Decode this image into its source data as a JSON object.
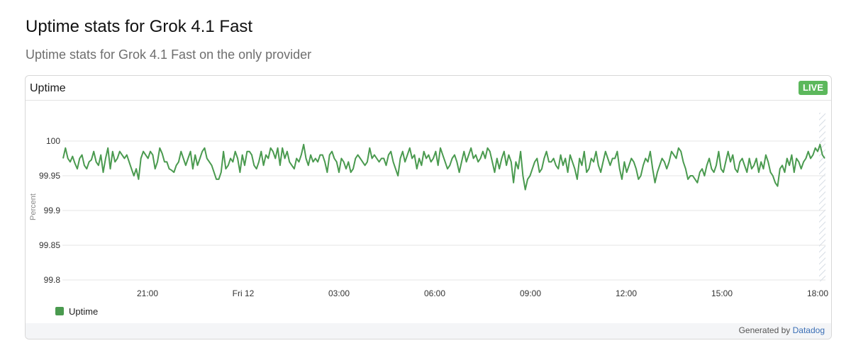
{
  "page": {
    "title": "Uptime stats for Grok 4.1 Fast",
    "subtitle": "Uptime stats for Grok 4.1 Fast on the only provider"
  },
  "widget": {
    "title": "Uptime",
    "badge": "LIVE",
    "badge_color": "#5cb85c",
    "footer_prefix": "Generated by",
    "footer_link": "Datadog"
  },
  "colors": {
    "series": "#4a9a4f",
    "grid": "#e6e6e6"
  },
  "chart_data": {
    "type": "line",
    "ylabel": "Percent",
    "ylim": [
      99.8,
      100.0
    ],
    "yticks": [
      99.8,
      99.85,
      99.9,
      99.95,
      100
    ],
    "ytick_labels": [
      "99.8",
      "99.85",
      "99.9",
      "99.95",
      "100"
    ],
    "xlim": [
      "Thu 18:00",
      "Fri 18:10"
    ],
    "xtick_labels": [
      "21:00",
      "Fri 12",
      "03:00",
      "06:00",
      "09:00",
      "12:00",
      "15:00",
      "18:00"
    ],
    "grid": true,
    "legend_position": "bottom-left",
    "series": [
      {
        "name": "Uptime",
        "values": [
          99.975,
          99.99,
          99.975,
          99.97,
          99.978,
          99.968,
          99.96,
          99.975,
          99.98,
          99.965,
          99.96,
          99.97,
          99.973,
          99.985,
          99.97,
          99.965,
          99.98,
          99.955,
          99.975,
          99.99,
          99.96,
          99.985,
          99.97,
          99.975,
          99.985,
          99.98,
          99.975,
          99.98,
          99.97,
          99.96,
          99.95,
          99.96,
          99.945,
          99.975,
          99.985,
          99.98,
          99.975,
          99.985,
          99.98,
          99.96,
          99.97,
          99.99,
          99.982,
          99.97,
          99.97,
          99.96,
          99.958,
          99.955,
          99.965,
          99.97,
          99.985,
          99.975,
          99.965,
          99.975,
          99.985,
          99.96,
          99.98,
          99.965,
          99.975,
          99.985,
          99.99,
          99.975,
          99.97,
          99.965,
          99.955,
          99.945,
          99.945,
          99.955,
          99.985,
          99.96,
          99.965,
          99.975,
          99.97,
          99.985,
          99.975,
          99.955,
          99.98,
          99.965,
          99.985,
          99.985,
          99.98,
          99.965,
          99.96,
          99.97,
          99.985,
          99.965,
          99.98,
          99.975,
          99.99,
          99.985,
          99.975,
          99.99,
          99.965,
          99.99,
          99.975,
          99.985,
          99.97,
          99.965,
          99.96,
          99.975,
          99.97,
          99.98,
          99.995,
          99.975,
          99.965,
          99.98,
          99.97,
          99.975,
          99.97,
          99.98,
          99.98,
          99.97,
          99.955,
          99.98,
          99.985,
          99.975,
          99.97,
          99.955,
          99.975,
          99.97,
          99.96,
          99.97,
          99.955,
          99.96,
          99.975,
          99.98,
          99.975,
          99.97,
          99.965,
          99.97,
          99.99,
          99.975,
          99.98,
          99.975,
          99.97,
          99.975,
          99.975,
          99.965,
          99.98,
          99.985,
          99.97,
          99.96,
          99.95,
          99.975,
          99.985,
          99.97,
          99.98,
          99.99,
          99.975,
          99.98,
          99.96,
          99.975,
          99.965,
          99.985,
          99.975,
          99.98,
          99.97,
          99.975,
          99.985,
          99.965,
          99.99,
          99.98,
          99.97,
          99.96,
          99.965,
          99.975,
          99.98,
          99.97,
          99.955,
          99.97,
          99.985,
          99.97,
          99.98,
          99.99,
          99.975,
          99.98,
          99.97,
          99.975,
          99.985,
          99.975,
          99.99,
          99.985,
          99.97,
          99.955,
          99.975,
          99.96,
          99.975,
          99.985,
          99.965,
          99.98,
          99.97,
          99.94,
          99.97,
          99.96,
          99.985,
          99.95,
          99.93,
          99.945,
          99.95,
          99.96,
          99.97,
          99.975,
          99.955,
          99.96,
          99.975,
          99.985,
          99.97,
          99.97,
          99.975,
          99.965,
          99.96,
          99.98,
          99.965,
          99.975,
          99.955,
          99.98,
          99.97,
          99.96,
          99.945,
          99.975,
          99.965,
          99.985,
          99.955,
          99.96,
          99.975,
          99.97,
          99.985,
          99.965,
          99.955,
          99.97,
          99.985,
          99.975,
          99.965,
          99.975,
          99.975,
          99.985,
          99.96,
          99.945,
          99.97,
          99.955,
          99.965,
          99.975,
          99.97,
          99.96,
          99.945,
          99.95,
          99.965,
          99.975,
          99.97,
          99.985,
          99.96,
          99.94,
          99.955,
          99.965,
          99.975,
          99.97,
          99.96,
          99.97,
          99.985,
          99.98,
          99.975,
          99.99,
          99.985,
          99.97,
          99.96,
          99.945,
          99.95,
          99.95,
          99.945,
          99.94,
          99.955,
          99.96,
          99.95,
          99.965,
          99.975,
          99.96,
          99.955,
          99.965,
          99.985,
          99.96,
          99.955,
          99.97,
          99.985,
          99.97,
          99.98,
          99.96,
          99.955,
          99.97,
          99.975,
          99.965,
          99.955,
          99.975,
          99.96,
          99.965,
          99.975,
          99.955,
          99.97,
          99.96,
          99.98,
          99.97,
          99.955,
          99.95,
          99.94,
          99.935,
          99.96,
          99.965,
          99.955,
          99.975,
          99.965,
          99.98,
          99.955,
          99.975,
          99.97,
          99.96,
          99.97,
          99.975,
          99.985,
          99.975,
          99.98,
          99.99,
          99.985,
          99.995,
          99.98,
          99.975
        ]
      }
    ]
  }
}
